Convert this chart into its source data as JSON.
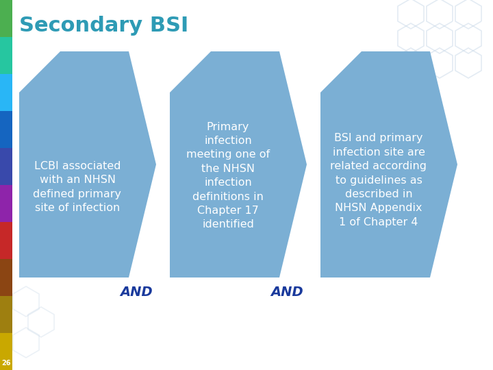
{
  "title": "Secondary BSI",
  "title_color": "#2E9BB5",
  "title_fontsize": 22,
  "bg_color": "#FFFFFF",
  "sidebar_colors": [
    "#4CAF50",
    "#26C6A0",
    "#29B6F6",
    "#1565C0",
    "#3949AB",
    "#8E24AA",
    "#C62828",
    "#8B4513",
    "#9E7F10",
    "#C9A800"
  ],
  "arrow_color": "#7BAFD4",
  "and_color": "#1A3A9C",
  "boxes": [
    {
      "text": "LCBI associated\nwith an NHSN\ndefined primary\nsite of infection"
    },
    {
      "text": "Primary\ninfection\nmeeting one of\nthe NHSN\ninfection\ndefinitions in\nChapter 17\nidentified"
    },
    {
      "text": "BSI and primary\ninfection site are\nrelated according\nto guidelines as\ndescribed in\nNHSN Appendix\n1 of Chapter 4"
    }
  ],
  "text_color": "#FFFFFF",
  "fontsize": 11.5,
  "page_num": "26",
  "page_num_color": "#FFFFFF",
  "hex_color": "#C8D8E8",
  "hex_alpha": 0.5
}
